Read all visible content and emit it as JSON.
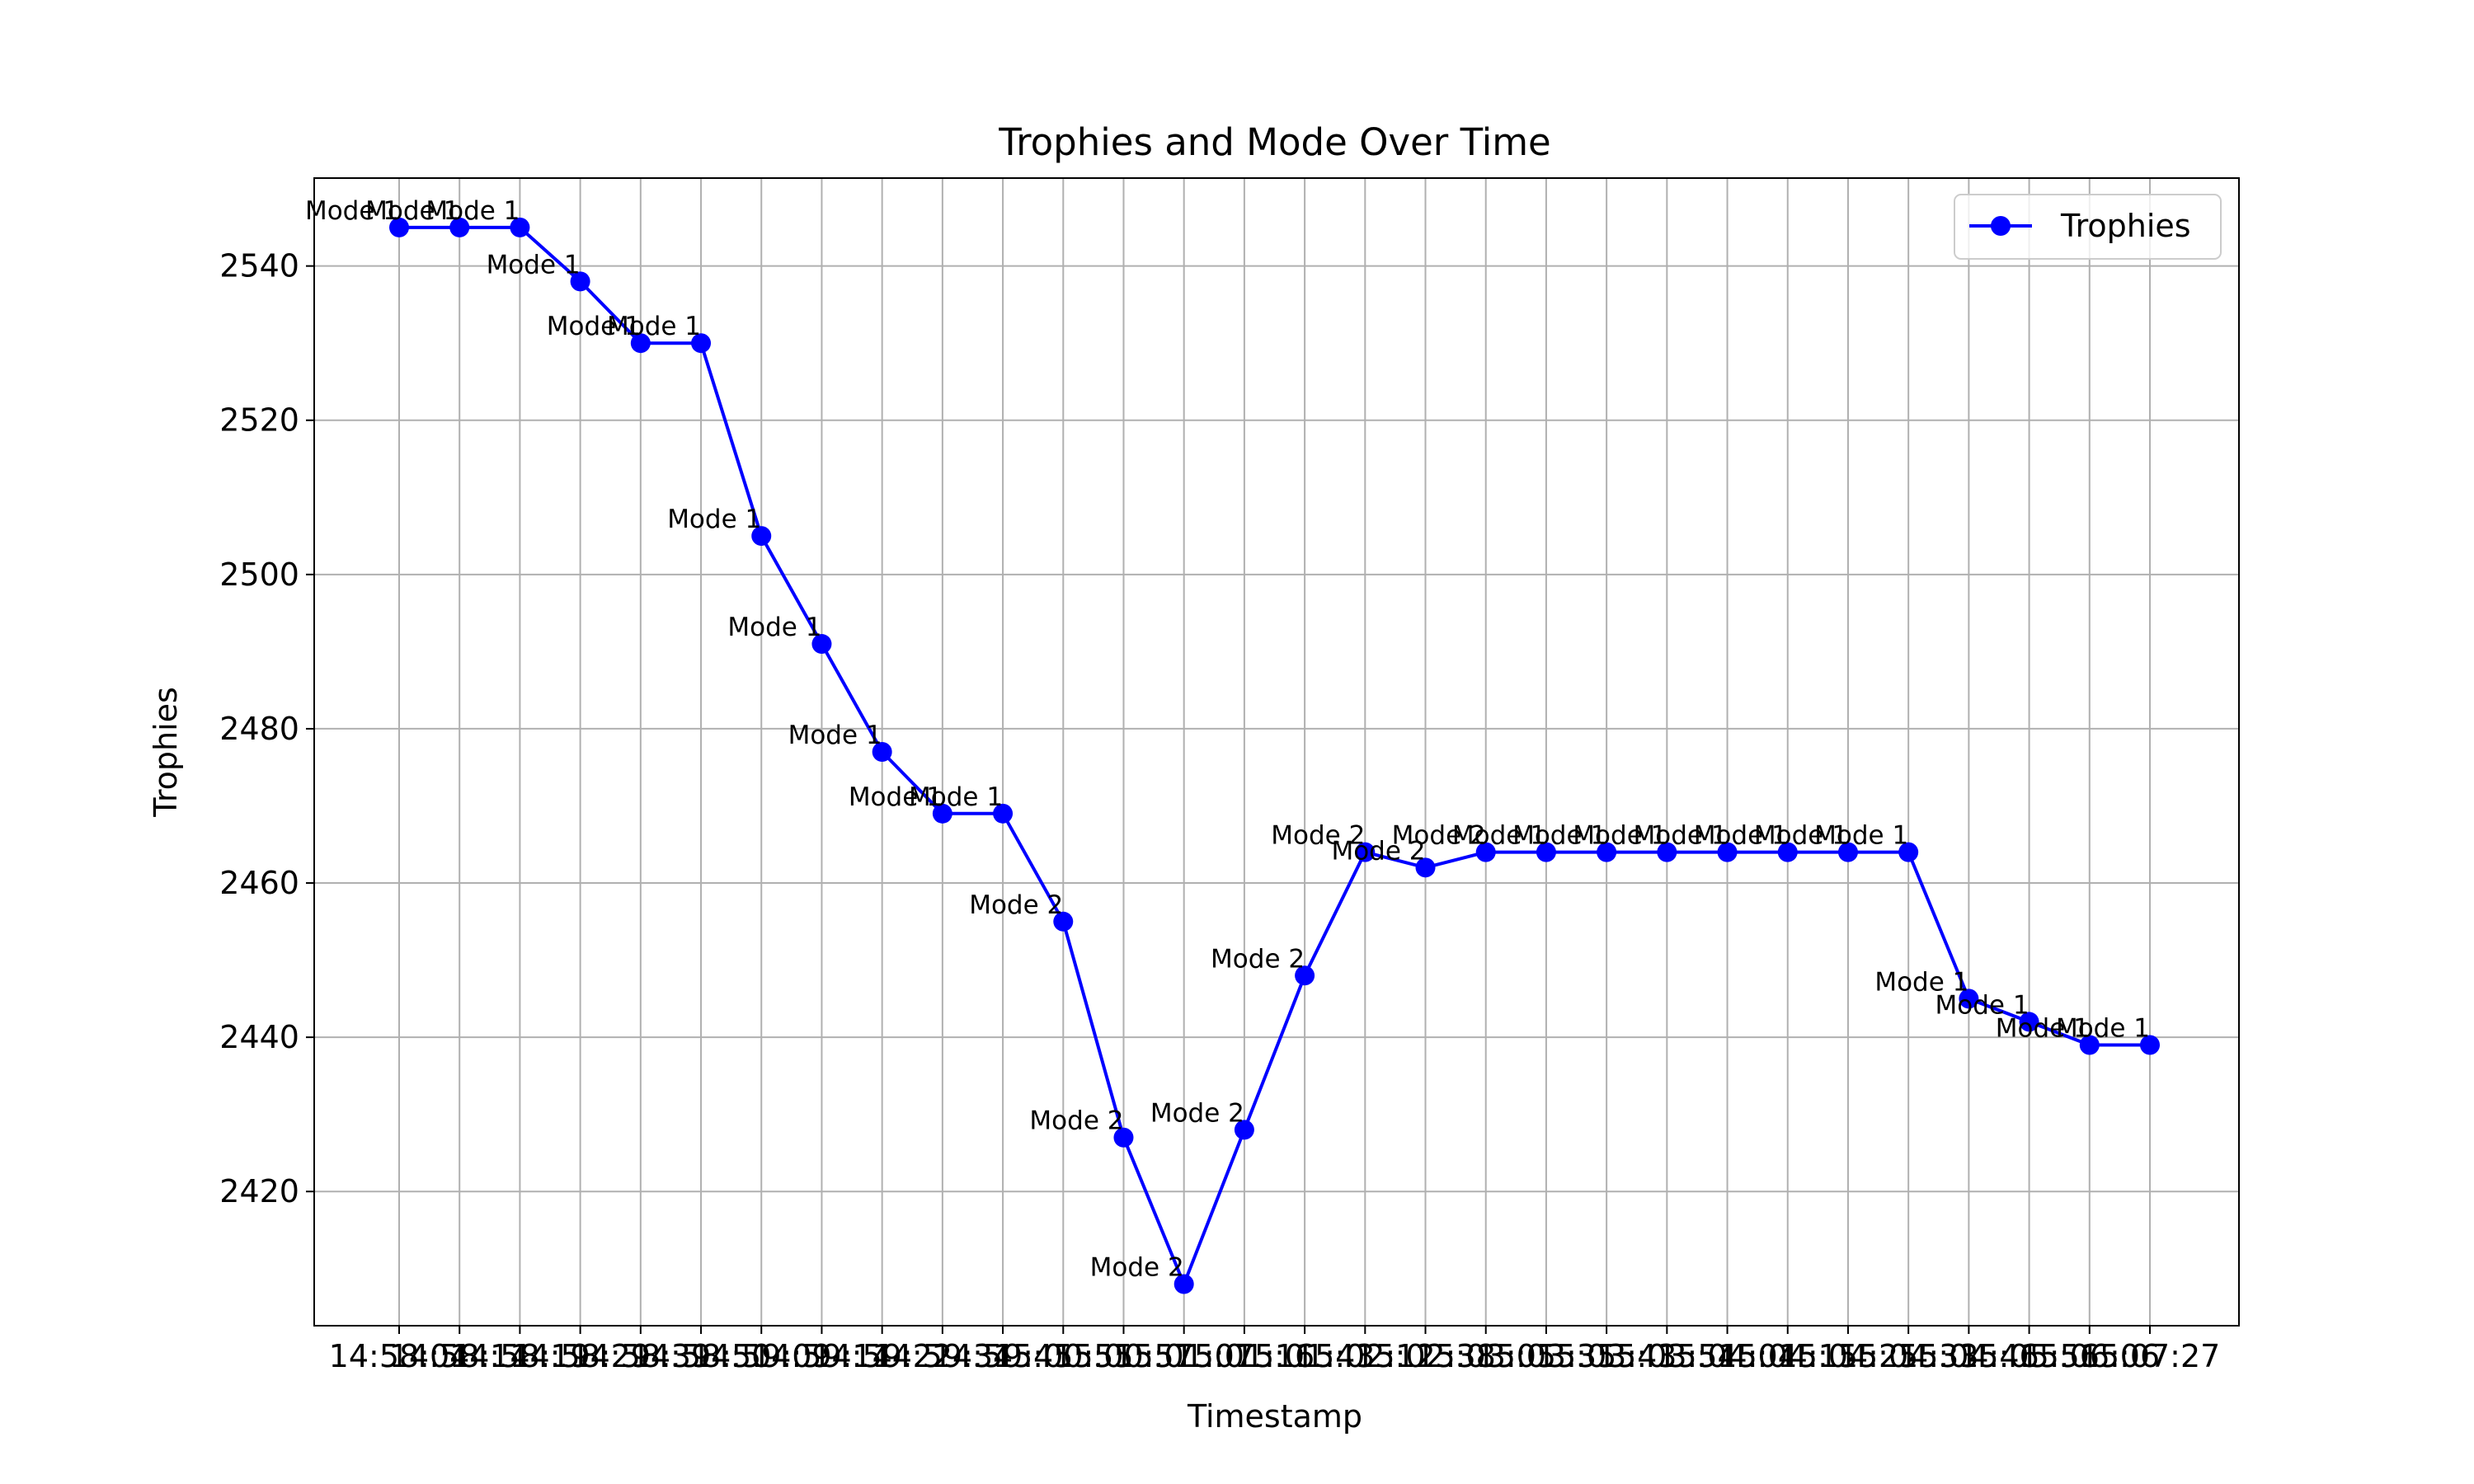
{
  "chart_data": {
    "type": "line",
    "title": "Trophies and Mode Over Time",
    "xlabel": "Timestamp",
    "ylabel": "Trophies",
    "ylim": [
      2402.6,
      2551.4
    ],
    "yticks": [
      2420,
      2440,
      2460,
      2480,
      2500,
      2520,
      2540
    ],
    "grid": true,
    "legend_position": "top-right",
    "x": [
      "14:58:04",
      "14:58:14",
      "14:58:19",
      "14:58:29",
      "14:58:39",
      "14:58:50",
      "14:59:09",
      "14:59:14",
      "14:59:22",
      "14:59:34",
      "14:59:45",
      "15:00:55",
      "15:00:57",
      "15:01:07",
      "15:01:16",
      "15:01:43",
      "15:02:12",
      "15:02:38",
      "15:03:05",
      "15:03:35",
      "15:03:43",
      "15:03:54",
      "15:04:04",
      "15:04:15",
      "15:04:25",
      "15:04:33",
      "15:04:46",
      "15:05:56",
      "15:06:06",
      "15:07:27"
    ],
    "series": [
      {
        "name": "Trophies",
        "color": "#0000ff",
        "marker": "circle",
        "values": [
          2545,
          2545,
          2545,
          2538,
          2530,
          2530,
          2505,
          2491,
          2477,
          2469,
          2469,
          2455,
          2427,
          2408,
          2428,
          2448,
          2464,
          2462,
          2464,
          2464,
          2464,
          2464,
          2464,
          2464,
          2464,
          2464,
          2445,
          2442,
          2439,
          2439
        ]
      }
    ],
    "point_labels": [
      "Mode 1",
      "Mode 1",
      "Mode 1",
      "Mode 1",
      "Mode 1",
      "Mode 1",
      "Mode 1",
      "Mode 1",
      "Mode 1",
      "Mode 1",
      "Mode 1",
      "Mode 2",
      "Mode 2",
      "Mode 2",
      "Mode 2",
      "Mode 2",
      "Mode 2",
      "Mode 2",
      "Mode 2",
      "Mode 1",
      "Mode 1",
      "Mode 1",
      "Mode 1",
      "Mode 1",
      "Mode 1",
      "Mode 1",
      "Mode 1",
      "Mode 1",
      "Mode 1",
      "Mode 1"
    ]
  }
}
